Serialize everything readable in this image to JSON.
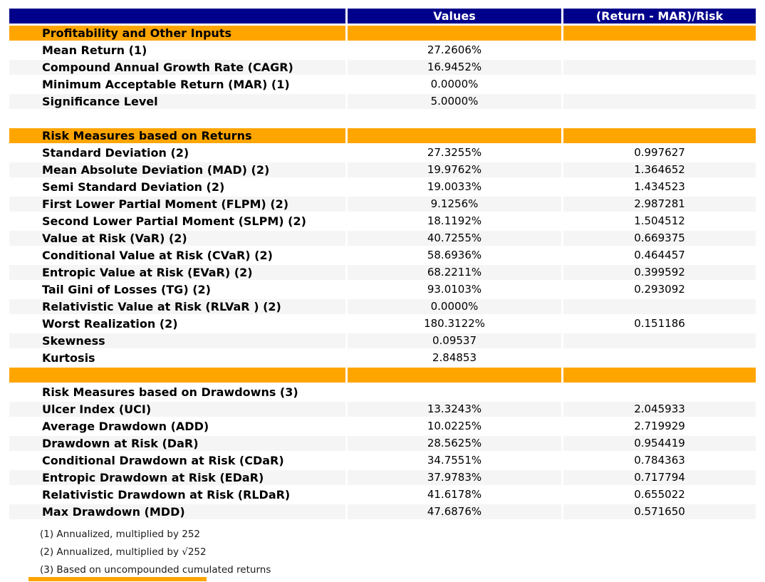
{
  "colors": {
    "header_bg": "#00008B",
    "header_text": "#FFFFFF",
    "section_bg": "#FFA500",
    "stripe_bg": "#F5F5F5",
    "label_text": "#000000"
  },
  "chart_data": {
    "type": "table",
    "title": "",
    "columns": [
      "",
      "Values",
      "(Return - MAR)/Risk"
    ],
    "rows": [
      {
        "type": "section",
        "label": "Profitability and Other Inputs",
        "value": "",
        "ratio": ""
      },
      {
        "type": "data",
        "label": "Mean Return (1)",
        "value": "27.2606%",
        "ratio": "",
        "shade": false
      },
      {
        "type": "data",
        "label": "Compound Annual Growth Rate (CAGR)",
        "value": "16.9452%",
        "ratio": "",
        "shade": true
      },
      {
        "type": "data",
        "label": "Minimum Acceptable Return (MAR) (1)",
        "value": "0.0000%",
        "ratio": "",
        "shade": false
      },
      {
        "type": "data",
        "label": "Significance Level",
        "value": "5.0000%",
        "ratio": "",
        "shade": true
      },
      {
        "type": "spacer",
        "label": "",
        "value": "",
        "ratio": ""
      },
      {
        "type": "section",
        "label": "Risk Measures based on Returns",
        "value": "",
        "ratio": ""
      },
      {
        "type": "data",
        "label": "Standard Deviation (2)",
        "value": "27.3255%",
        "ratio": "0.997627",
        "shade": false
      },
      {
        "type": "data",
        "label": "Mean Absolute Deviation (MAD) (2)",
        "value": "19.9762%",
        "ratio": "1.364652",
        "shade": true
      },
      {
        "type": "data",
        "label": "Semi Standard Deviation (2)",
        "value": "19.0033%",
        "ratio": "1.434523",
        "shade": false
      },
      {
        "type": "data",
        "label": "First Lower Partial Moment (FLPM) (2)",
        "value": "9.1256%",
        "ratio": "2.987281",
        "shade": true
      },
      {
        "type": "data",
        "label": "Second Lower Partial Moment (SLPM) (2)",
        "value": "18.1192%",
        "ratio": "1.504512",
        "shade": false
      },
      {
        "type": "data",
        "label": "Value at Risk (VaR) (2)",
        "value": "40.7255%",
        "ratio": "0.669375",
        "shade": true
      },
      {
        "type": "data",
        "label": "Conditional Value at Risk (CVaR) (2)",
        "value": "58.6936%",
        "ratio": "0.464457",
        "shade": false
      },
      {
        "type": "data",
        "label": "Entropic Value at Risk (EVaR) (2)",
        "value": "68.2211%",
        "ratio": "0.399592",
        "shade": true
      },
      {
        "type": "data",
        "label": "Tail Gini of Losses (TG) (2)",
        "value": "93.0103%",
        "ratio": "0.293092",
        "shade": false
      },
      {
        "type": "data",
        "label": "Relativistic Value at Risk (RLVaR ) (2)",
        "value": "0.0000%",
        "ratio": "",
        "shade": true
      },
      {
        "type": "data",
        "label": "Worst Realization (2)",
        "value": "180.3122%",
        "ratio": "0.151186",
        "shade": false
      },
      {
        "type": "data",
        "label": "Skewness",
        "value": "0.09537",
        "ratio": "",
        "shade": true
      },
      {
        "type": "data",
        "label": "Kurtosis",
        "value": "2.84853",
        "ratio": "",
        "shade": false
      },
      {
        "type": "section",
        "label": "",
        "value": "",
        "ratio": ""
      },
      {
        "type": "subheader",
        "label": "Risk Measures based on Drawdowns (3)",
        "value": "",
        "ratio": ""
      },
      {
        "type": "data",
        "label": "Ulcer Index (UCI)",
        "value": "13.3243%",
        "ratio": "2.045933",
        "shade": true
      },
      {
        "type": "data",
        "label": "Average Drawdown (ADD)",
        "value": "10.0225%",
        "ratio": "2.719929",
        "shade": false
      },
      {
        "type": "data",
        "label": "Drawdown at Risk (DaR)",
        "value": "28.5625%",
        "ratio": "0.954419",
        "shade": true
      },
      {
        "type": "data",
        "label": "Conditional Drawdown at Risk (CDaR)",
        "value": "34.7551%",
        "ratio": "0.784363",
        "shade": false
      },
      {
        "type": "data",
        "label": "Entropic Drawdown at Risk (EDaR)",
        "value": "37.9783%",
        "ratio": "0.717794",
        "shade": true
      },
      {
        "type": "data",
        "label": "Relativistic Drawdown at Risk (RLDaR)",
        "value": "41.6178%",
        "ratio": "0.655022",
        "shade": false
      },
      {
        "type": "data",
        "label": "Max Drawdown (MDD)",
        "value": "47.6876%",
        "ratio": "0.571650",
        "shade": true
      }
    ],
    "footnotes": [
      "(1) Annualized, multiplied by 252",
      "(2) Annualized, multiplied by √252",
      "(3) Based on uncompounded cumulated returns"
    ]
  }
}
